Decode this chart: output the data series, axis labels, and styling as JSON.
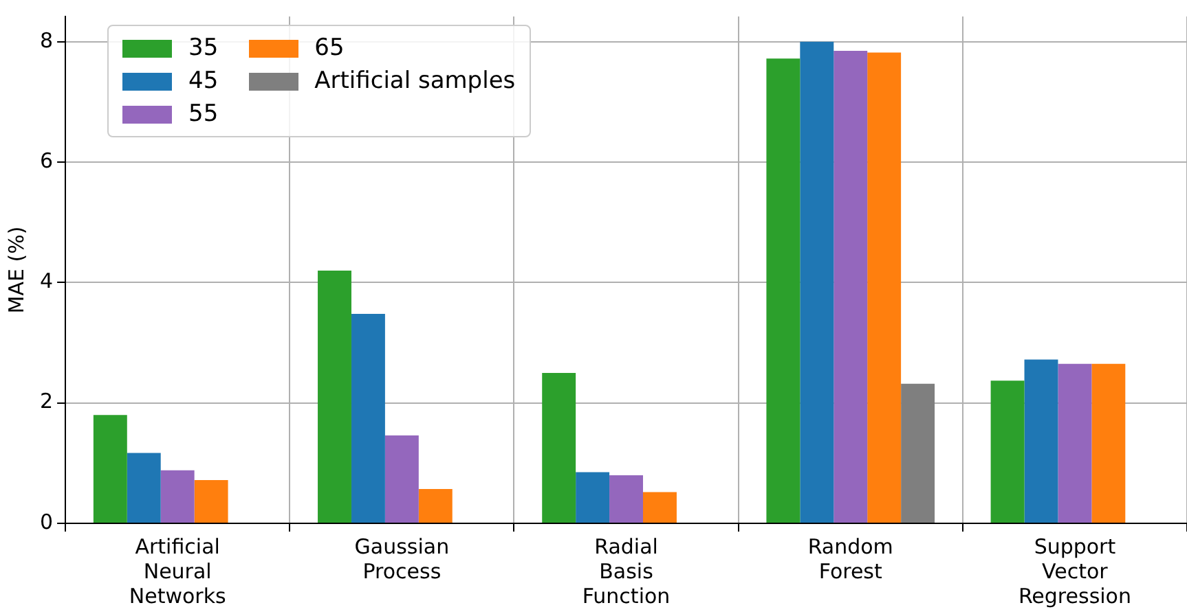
{
  "chart_data": {
    "type": "bar",
    "ylabel": "MAE (%)",
    "categories": [
      "Artificial Neural Networks",
      "Gaussian Process",
      "Radial Basis Function",
      "Random Forest",
      "Support Vector Regression"
    ],
    "series": [
      {
        "name": "35",
        "color": "#2ca02c",
        "values": [
          1.8,
          4.2,
          2.5,
          7.72,
          2.37
        ]
      },
      {
        "name": "45",
        "color": "#1f77b4",
        "values": [
          1.17,
          3.48,
          0.85,
          8.0,
          2.72
        ]
      },
      {
        "name": "55",
        "color": "#9467bd",
        "values": [
          0.88,
          1.46,
          0.8,
          7.85,
          2.65
        ]
      },
      {
        "name": "65",
        "color": "#ff7f0e",
        "values": [
          0.72,
          0.57,
          0.52,
          7.82,
          2.65
        ]
      },
      {
        "name": "Artificial samples",
        "color": "#7f7f7f",
        "values": [
          null,
          null,
          null,
          2.32,
          null
        ]
      }
    ],
    "ylim": [
      0,
      8.42
    ],
    "yticks": [
      0,
      2,
      4,
      6,
      8
    ],
    "grid": true,
    "legend": "top left"
  }
}
